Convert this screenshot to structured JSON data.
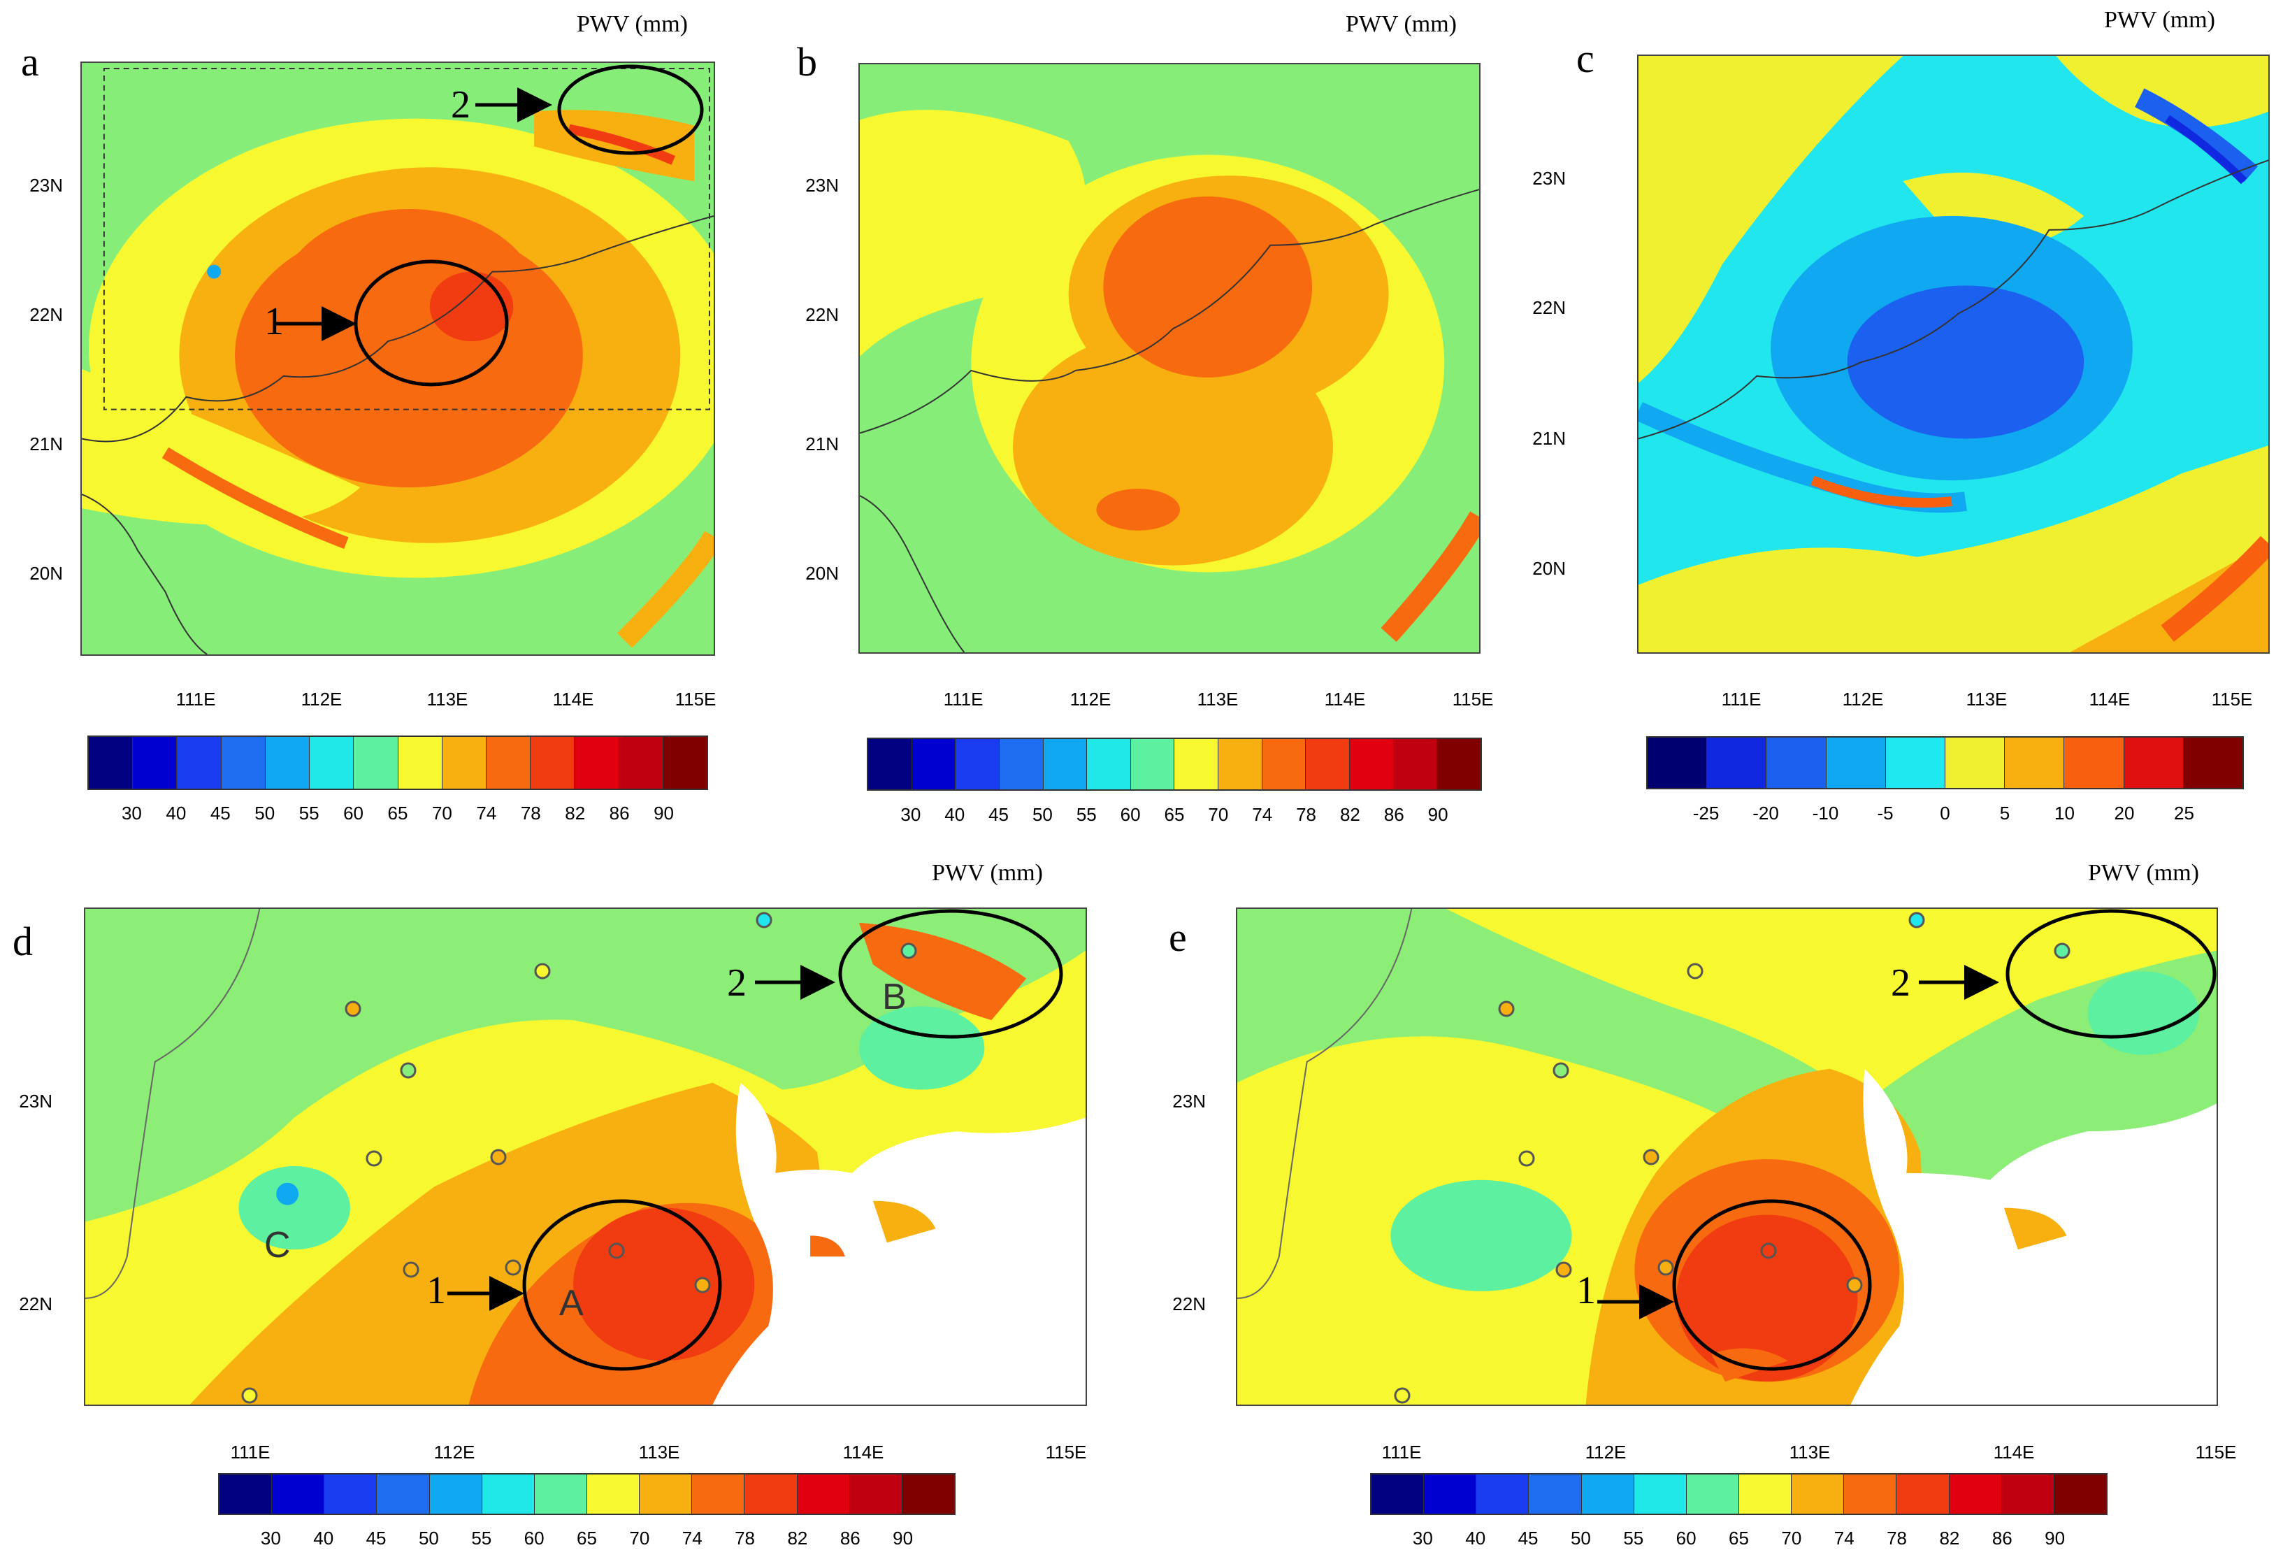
{
  "figure": {
    "unit_label": "PWV (mm)",
    "panels": {
      "a": {
        "letter": "a",
        "lat_labels": [
          "23N",
          "22N",
          "21N",
          "20N"
        ],
        "lon_labels": [
          "111E",
          "112E",
          "113E",
          "114E",
          "115E"
        ],
        "colorbar_ticks": [
          "30",
          "40",
          "45",
          "50",
          "55",
          "60",
          "65",
          "70",
          "74",
          "78",
          "82",
          "86",
          "90"
        ],
        "annotations": [
          "1",
          "2"
        ]
      },
      "b": {
        "letter": "b",
        "lat_labels": [
          "23N",
          "22N",
          "21N",
          "20N"
        ],
        "lon_labels": [
          "111E",
          "112E",
          "113E",
          "114E",
          "115E"
        ],
        "colorbar_ticks": [
          "30",
          "40",
          "45",
          "50",
          "55",
          "60",
          "65",
          "70",
          "74",
          "78",
          "82",
          "86",
          "90"
        ]
      },
      "c": {
        "letter": "c",
        "lat_labels": [
          "23N",
          "22N",
          "21N",
          "20N"
        ],
        "lon_labels": [
          "111E",
          "112E",
          "113E",
          "114E",
          "115E"
        ],
        "colorbar_ticks": [
          "-25",
          "-20",
          "-10",
          "-5",
          "0",
          "5",
          "10",
          "20",
          "25"
        ]
      },
      "d": {
        "letter": "d",
        "lat_labels": [
          "23N",
          "22N"
        ],
        "lon_labels": [
          "111E",
          "112E",
          "113E",
          "114E",
          "115E"
        ],
        "colorbar_ticks": [
          "30",
          "40",
          "45",
          "50",
          "55",
          "60",
          "65",
          "70",
          "74",
          "78",
          "82",
          "86",
          "90"
        ],
        "annotations": [
          "1",
          "2"
        ],
        "sites": [
          "A",
          "B",
          "C"
        ]
      },
      "e": {
        "letter": "e",
        "lat_labels": [
          "23N",
          "22N"
        ],
        "lon_labels": [
          "111E",
          "112E",
          "113E",
          "114E",
          "115E"
        ],
        "colorbar_ticks": [
          "30",
          "40",
          "45",
          "50",
          "55",
          "60",
          "65",
          "70",
          "74",
          "78",
          "82",
          "86",
          "90"
        ],
        "annotations": [
          "1",
          "2"
        ]
      }
    },
    "colors": {
      "pwv_scale": [
        "#000080",
        "#0000d0",
        "#1a3cf0",
        "#1e6cf0",
        "#10a8f0",
        "#20e8e8",
        "#5cf0a0",
        "#88f078",
        "#f8f830",
        "#f8b010",
        "#f86a10",
        "#f03c10",
        "#e00010",
        "#c00010",
        "#800000"
      ],
      "diff_scale": [
        "#000070",
        "#1028e0",
        "#1c60f0",
        "#10a8f0",
        "#20e8f0",
        "#f0f030",
        "#f8b010",
        "#f86010",
        "#e01010",
        "#800000"
      ]
    }
  }
}
